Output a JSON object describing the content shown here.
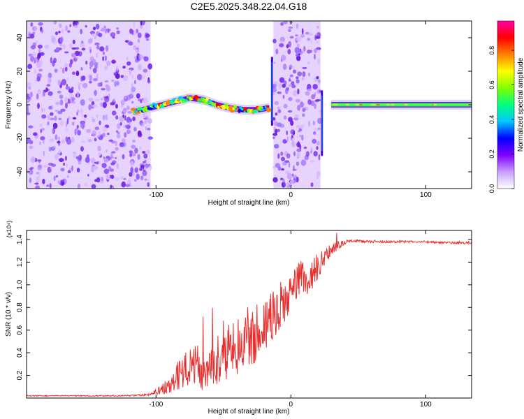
{
  "title": "C2E5.2025.348.22.04.G18",
  "chart_data": [
    {
      "type": "heatmap",
      "xlabel": "Height of straight line (km)",
      "ylabel": "Frequency (Hz)",
      "xlim": [
        -196,
        134
      ],
      "ylim": [
        -50,
        50
      ],
      "xticks": [
        -100,
        0,
        100
      ],
      "xtick_labels": [
        "-100",
        "0",
        "100"
      ],
      "yticks": [
        -40,
        -20,
        0,
        20,
        40
      ],
      "ytick_labels": [
        "-40",
        "-20",
        "0",
        "20",
        "40"
      ],
      "colorbar": {
        "label": "Normalized spectral amplitude",
        "range": [
          0,
          0.97
        ],
        "ticks": [
          0.0,
          0.2,
          0.4,
          0.6,
          0.8
        ],
        "tick_labels": [
          "0.0",
          "0.2",
          "0.4",
          "0.6",
          "0.8"
        ],
        "colormap": [
          "#ffffff",
          "#c8a0ff",
          "#8000ff",
          "#0000ff",
          "#00c8ff",
          "#00ff80",
          "#80ff00",
          "#ffff00",
          "#ff8000",
          "#ff0000",
          "#ff00a0"
        ]
      },
      "regions": [
        {
          "x": [
            -196,
            -104
          ],
          "type": "noise"
        },
        {
          "x": [
            -117,
            -16
          ],
          "type": "signal",
          "freq_center": 0
        },
        {
          "x": [
            -13,
            22
          ],
          "type": "noise"
        },
        {
          "x": [
            30,
            134
          ],
          "type": "signal",
          "freq_center": 0
        }
      ],
      "signal_track": {
        "x": [
          -115,
          -105,
          -95,
          -85,
          -75,
          -65,
          -55,
          -45,
          -35,
          -25,
          -17,
          30,
          134
        ],
        "y": [
          -4,
          -2,
          0,
          2,
          4,
          3,
          0,
          -2,
          -3,
          -3,
          -2,
          0,
          0
        ]
      }
    },
    {
      "type": "line",
      "xlabel": "Height of straight line (km)",
      "ylabel": "SNR (10 * v/v)",
      "y_multiplier": "(x10⁴)",
      "xlim": [
        -196,
        134
      ],
      "ylim": [
        0,
        1.48
      ],
      "xticks": [
        -100,
        0,
        100
      ],
      "xtick_labels": [
        "-100",
        "0",
        "100"
      ],
      "yticks": [
        0.2,
        0.4,
        0.6,
        0.8,
        1.0,
        1.2,
        1.4
      ],
      "ytick_labels": [
        "0.2",
        "0.4",
        "0.6",
        "0.8",
        "1.0",
        "1.2",
        "1.4"
      ],
      "line_color": "#e83030",
      "series": [
        {
          "x": [
            -196,
            -180,
            -160,
            -140,
            -120,
            -105,
            -95,
            -85,
            -75,
            -65,
            -55,
            -45,
            -35,
            -25,
            -15,
            -5,
            5,
            15,
            25,
            35,
            45,
            60,
            80,
            100,
            120,
            134
          ],
          "y": [
            0.02,
            0.02,
            0.02,
            0.02,
            0.02,
            0.03,
            0.08,
            0.18,
            0.3,
            0.26,
            0.34,
            0.42,
            0.48,
            0.58,
            0.72,
            0.85,
            1.02,
            1.08,
            1.25,
            1.35,
            1.39,
            1.38,
            1.38,
            1.38,
            1.37,
            1.37
          ],
          "noise": [
            0.005,
            0.005,
            0.005,
            0.005,
            0.006,
            0.01,
            0.05,
            0.12,
            0.18,
            0.2,
            0.22,
            0.24,
            0.25,
            0.25,
            0.23,
            0.2,
            0.18,
            0.16,
            0.08,
            0.04,
            0.012,
            0.01,
            0.01,
            0.01,
            0.01,
            0.01
          ]
        }
      ]
    }
  ]
}
